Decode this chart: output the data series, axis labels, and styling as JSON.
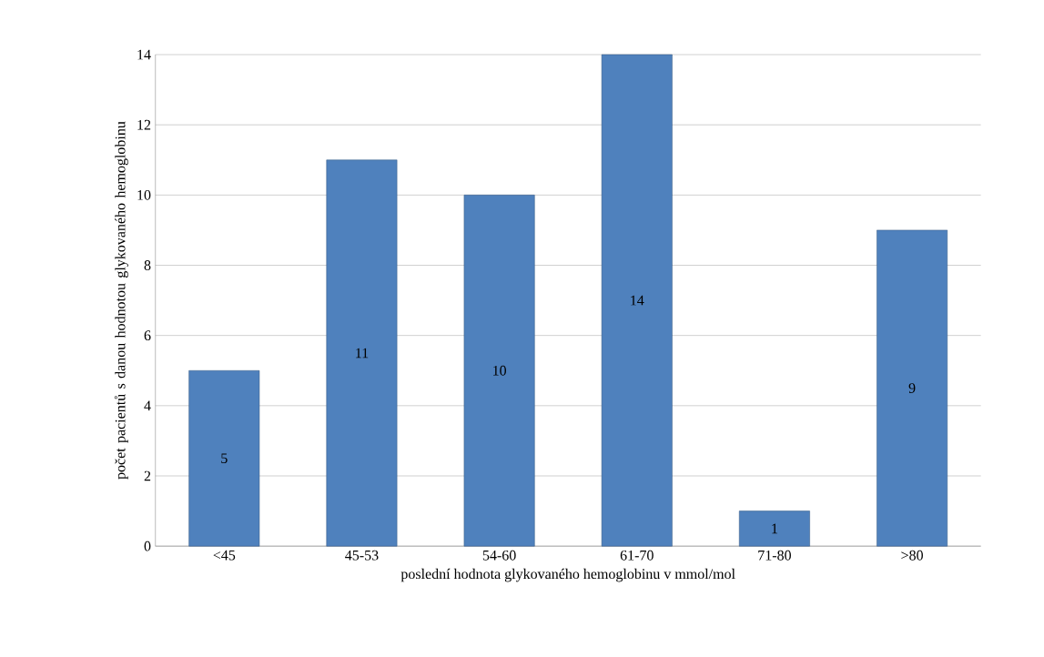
{
  "chart_data": {
    "type": "bar",
    "xlabel": "poslední hodnota glykovaného hemoglobinu v mmol/mol",
    "ylabel": "počet pacientů s danou hodnotou glykovaného hemoglobinu",
    "categories": [
      "<45",
      "45-53",
      "54-60",
      "61-70",
      "71-80",
      ">80"
    ],
    "values": [
      5,
      11,
      10,
      14,
      1,
      9
    ],
    "color": "#4f81bd",
    "ylim": [
      0,
      14
    ],
    "yticks": [
      0,
      2,
      4,
      6,
      8,
      10,
      12,
      14
    ],
    "grid": "y",
    "data_labels": true
  }
}
